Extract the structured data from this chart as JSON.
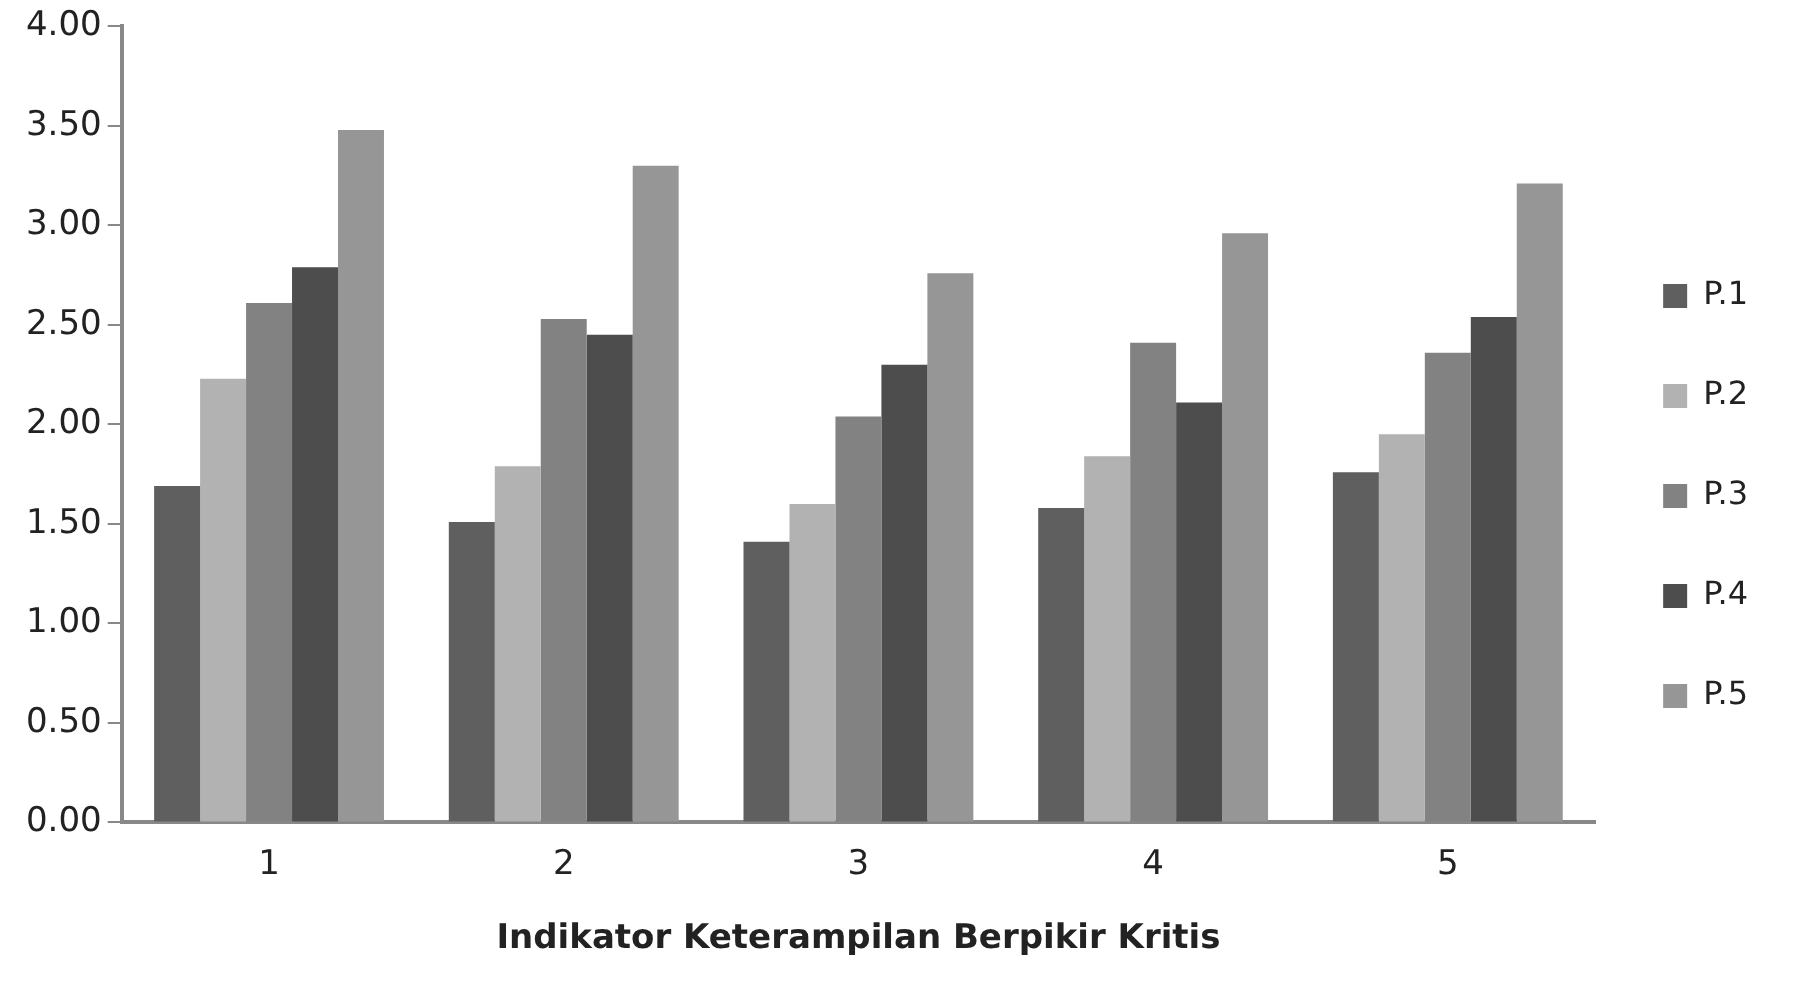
{
  "chart_data": {
    "type": "bar",
    "xlabel": "Indikator Keterampilan Berpikir Kritis",
    "categories": [
      "1",
      "2",
      "3",
      "4",
      "5"
    ],
    "series": [
      {
        "name": "P.1",
        "color": "#5f5f5f",
        "values": [
          1.69,
          1.51,
          1.41,
          1.58,
          1.76
        ]
      },
      {
        "name": "P.2",
        "color": "#b2b2b2",
        "values": [
          2.23,
          1.79,
          1.6,
          1.84,
          1.95
        ]
      },
      {
        "name": "P.3",
        "color": "#828282",
        "values": [
          2.61,
          2.53,
          2.04,
          2.41,
          2.36
        ]
      },
      {
        "name": "P.4",
        "color": "#4d4d4d",
        "values": [
          2.79,
          2.45,
          2.3,
          2.11,
          2.54
        ]
      },
      {
        "name": "P.5",
        "color": "#969696",
        "values": [
          3.48,
          3.3,
          2.76,
          2.96,
          3.21
        ]
      }
    ],
    "ylim": [
      0,
      4
    ],
    "yticks": [
      {
        "value": 0,
        "label": "0.00"
      },
      {
        "value": 0.5,
        "label": "0.50"
      },
      {
        "value": 1,
        "label": "1.00"
      },
      {
        "value": 1.5,
        "label": "1.50"
      },
      {
        "value": 2,
        "label": "2.00"
      },
      {
        "value": 2.5,
        "label": "2.50"
      },
      {
        "value": 3,
        "label": "3.00"
      },
      {
        "value": 3.5,
        "label": "3.50"
      },
      {
        "value": 4,
        "label": "4.00"
      }
    ],
    "grid": false,
    "legend": "right"
  }
}
